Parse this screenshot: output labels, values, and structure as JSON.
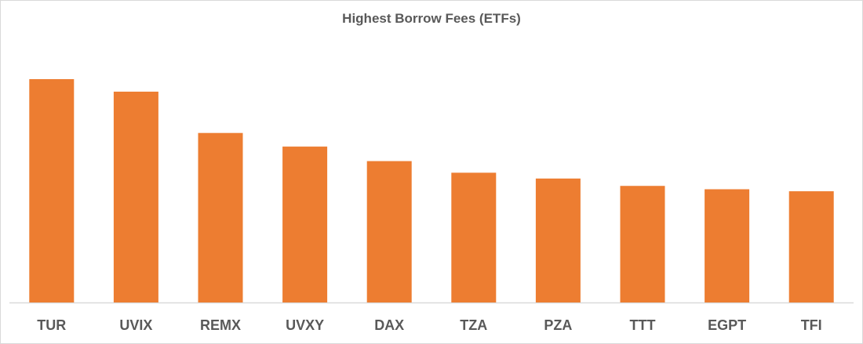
{
  "chart_data": {
    "type": "bar",
    "title": "Highest Borrow Fees (ETFs)",
    "categories": [
      "TUR",
      "UVIX",
      "REMX",
      "UVXY",
      "DAX",
      "TZA",
      "PZA",
      "TTT",
      "EGPT",
      "TFI"
    ],
    "values": [
      100,
      94.4,
      75.9,
      69.8,
      63.3,
      58.1,
      55.5,
      52.2,
      50.7,
      49.8
    ],
    "value_note_scale": "relative (no value axis printed)",
    "xlabel": "",
    "ylabel": "",
    "ylim": [
      0,
      100
    ],
    "grid": false,
    "legend": "none",
    "bar_color": "#ED7D31"
  }
}
